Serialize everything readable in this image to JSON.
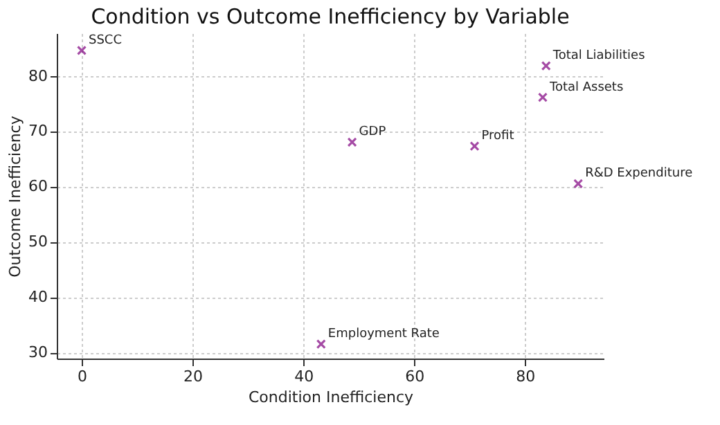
{
  "chart_data": {
    "type": "scatter",
    "title": "Condition vs Outcome Inefficiency by Variable",
    "xlabel": "Condition Inefficiency",
    "ylabel": "Outcome Inefficiency",
    "x": [
      0,
      83.8,
      83.2,
      48.8,
      70.9,
      89.6,
      43.2
    ],
    "series": [
      {
        "color": "#800080",
        "values": [
          84.6,
          81.8,
          76.1,
          68.0,
          67.3,
          60.5,
          31.5
        ]
      }
    ],
    "annotations": [
      {
        "text": "SSCC",
        "x": 0,
        "y": 84.6
      },
      {
        "text": "Total Liabilities",
        "x": 83.8,
        "y": 81.8
      },
      {
        "text": "Total Assets",
        "x": 83.2,
        "y": 76.1
      },
      {
        "text": "GDP",
        "x": 48.8,
        "y": 68.0
      },
      {
        "text": "Profit",
        "x": 70.9,
        "y": 67.3
      },
      {
        "text": "R&D Expenditure",
        "x": 89.6,
        "y": 60.5
      },
      {
        "text": "Employment Rate",
        "x": 43.2,
        "y": 31.5
      }
    ],
    "marker": "cross",
    "grid": true,
    "xlim": [
      -4.5,
      94.2
    ],
    "ylim": [
      28.9,
      87.7
    ],
    "xticks": [
      0,
      20,
      40,
      60,
      80
    ],
    "yticks": [
      30,
      40,
      50,
      60,
      70,
      80
    ]
  }
}
